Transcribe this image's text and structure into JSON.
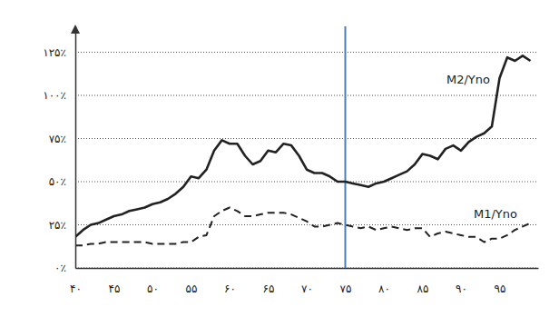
{
  "chart_data": {
    "type": "line",
    "x": [
      40,
      41,
      42,
      43,
      44,
      45,
      46,
      47,
      48,
      49,
      50,
      51,
      52,
      53,
      54,
      55,
      56,
      57,
      58,
      59,
      60,
      61,
      62,
      63,
      64,
      65,
      66,
      67,
      68,
      69,
      70,
      71,
      72,
      73,
      74,
      75,
      76,
      77,
      78,
      79,
      80,
      81,
      82,
      83,
      84,
      85,
      86,
      87,
      88,
      89,
      90,
      91,
      92,
      93,
      94,
      95,
      96,
      97,
      98,
      99
    ],
    "series": [
      {
        "name": "M2/Yno",
        "color": "#222222",
        "line_style": "solid",
        "values": [
          18,
          22,
          25,
          26,
          28,
          30,
          31,
          33,
          34,
          35,
          37,
          38,
          40,
          43,
          47,
          53,
          52,
          57,
          68,
          74,
          72,
          72,
          65,
          60,
          62,
          68,
          67,
          72,
          71,
          65,
          57,
          55,
          55,
          53,
          50,
          50,
          49,
          48,
          47,
          49,
          50,
          52,
          54,
          56,
          60,
          66,
          65,
          63,
          69,
          71,
          68,
          73,
          76,
          78,
          82,
          110,
          122,
          120,
          123,
          120
        ]
      },
      {
        "name": "M1/Yno",
        "color": "#222222",
        "line_style": "dashed",
        "values": [
          13,
          13,
          14,
          14,
          15,
          15,
          15,
          15,
          15,
          15,
          14,
          14,
          14,
          14,
          15,
          15,
          18,
          19,
          30,
          33,
          35,
          33,
          30,
          30,
          31,
          32,
          32,
          32,
          31,
          29,
          27,
          24,
          24,
          25,
          26,
          25,
          24,
          23,
          24,
          22,
          23,
          24,
          23,
          22,
          23,
          23,
          18,
          20,
          21,
          20,
          19,
          18,
          18,
          15,
          17,
          17,
          19,
          22,
          24,
          26
        ]
      }
    ],
    "xlim": [
      40,
      100
    ],
    "xticks": [
      {
        "value": 40,
        "label": "۴۰"
      },
      {
        "value": 45,
        "label": "۴۵"
      },
      {
        "value": 50,
        "label": "۵۰"
      },
      {
        "value": 55,
        "label": "۵۵"
      },
      {
        "value": 60,
        "label": "۶۰"
      },
      {
        "value": 65,
        "label": "۶۵"
      },
      {
        "value": 70,
        "label": "۷۰"
      },
      {
        "value": 75,
        "label": "۷۵"
      },
      {
        "value": 80,
        "label": "۸۰"
      },
      {
        "value": 85,
        "label": "۸۵"
      },
      {
        "value": 90,
        "label": "۹۰"
      },
      {
        "value": 95,
        "label": "۹۵"
      }
    ],
    "ylim": [
      0,
      140
    ],
    "yticks": [
      {
        "value": 0,
        "label": "۰٪"
      },
      {
        "value": 25,
        "label": "۲۵٪"
      },
      {
        "value": 50,
        "label": "۵۰٪"
      },
      {
        "value": 75,
        "label": "۷۵٪"
      },
      {
        "value": 100,
        "label": "۱۰۰٪"
      },
      {
        "value": 125,
        "label": "۱۲۵٪"
      }
    ],
    "grid": true,
    "vertical_line": 75
  }
}
